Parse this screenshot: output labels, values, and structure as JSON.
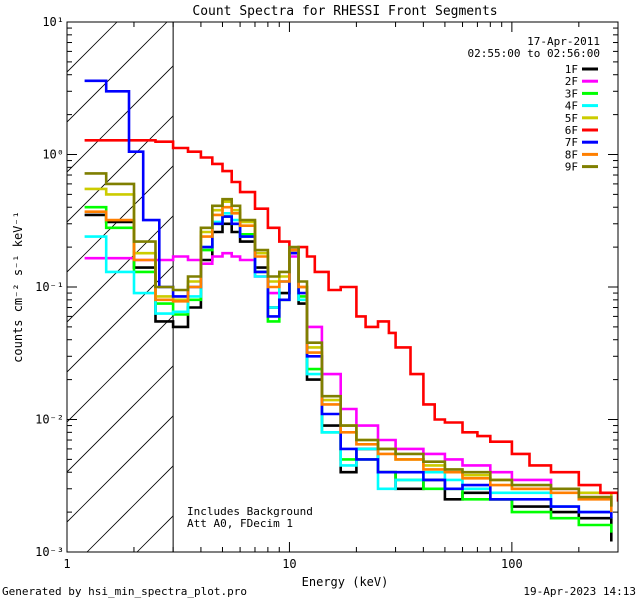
{
  "chart_data": {
    "type": "line",
    "title": "Count Spectra for RHESSI Front Segments",
    "xlabel": "Energy (keV)",
    "ylabel": "counts cm⁻² s⁻¹ keV⁻¹",
    "xscale": "log",
    "yscale": "log",
    "xlim": [
      1,
      300
    ],
    "ylim": [
      0.001,
      10
    ],
    "x_tick_labels": [
      "1",
      "10",
      "100"
    ],
    "y_tick_labels": [
      "10⁻³",
      "10⁻²",
      "10⁻¹",
      "10⁰",
      "10¹"
    ],
    "legend_position": "top-right",
    "date": "17-Apr-2011",
    "time_range": "02:55:00 to 02:56:00",
    "annotations": [
      "Includes Background",
      "Att A0, FDecim 1"
    ],
    "hatched_region_keV": [
      1,
      3
    ],
    "series": [
      {
        "name": "1F",
        "color": "#000000",
        "points": [
          [
            1.2,
            0.35
          ],
          [
            1.5,
            0.31
          ],
          [
            2.0,
            0.14
          ],
          [
            2.5,
            0.055
          ],
          [
            3.0,
            0.05
          ],
          [
            3.5,
            0.07
          ],
          [
            4.0,
            0.16
          ],
          [
            4.5,
            0.26
          ],
          [
            5.0,
            0.3
          ],
          [
            5.5,
            0.26
          ],
          [
            6.0,
            0.22
          ],
          [
            7.0,
            0.14
          ],
          [
            8.0,
            0.07
          ],
          [
            9.0,
            0.09
          ],
          [
            10.0,
            0.19
          ],
          [
            11.0,
            0.075
          ],
          [
            12.0,
            0.02
          ],
          [
            14.0,
            0.009
          ],
          [
            17.0,
            0.004
          ],
          [
            20.0,
            0.006
          ],
          [
            25.0,
            0.004
          ],
          [
            30.0,
            0.003
          ],
          [
            40.0,
            0.0035
          ],
          [
            50.0,
            0.0025
          ],
          [
            60.0,
            0.0028
          ],
          [
            80.0,
            0.0025
          ],
          [
            100.0,
            0.0022
          ],
          [
            150.0,
            0.002
          ],
          [
            200.0,
            0.0018
          ],
          [
            280.0,
            0.0012
          ]
        ]
      },
      {
        "name": "2F",
        "color": "#ff00ff",
        "points": [
          [
            1.2,
            0.165
          ],
          [
            1.5,
            0.165
          ],
          [
            2.0,
            0.16
          ],
          [
            2.5,
            0.16
          ],
          [
            3.0,
            0.17
          ],
          [
            3.5,
            0.16
          ],
          [
            4.0,
            0.15
          ],
          [
            4.5,
            0.17
          ],
          [
            5.0,
            0.18
          ],
          [
            5.5,
            0.17
          ],
          [
            6.0,
            0.16
          ],
          [
            7.0,
            0.12
          ],
          [
            8.0,
            0.09
          ],
          [
            9.0,
            0.11
          ],
          [
            10.0,
            0.17
          ],
          [
            11.0,
            0.1
          ],
          [
            12.0,
            0.05
          ],
          [
            14.0,
            0.022
          ],
          [
            17.0,
            0.012
          ],
          [
            20.0,
            0.009
          ],
          [
            25.0,
            0.007
          ],
          [
            30.0,
            0.006
          ],
          [
            40.0,
            0.0055
          ],
          [
            50.0,
            0.005
          ],
          [
            60.0,
            0.0045
          ],
          [
            80.0,
            0.004
          ],
          [
            100.0,
            0.0035
          ],
          [
            150.0,
            0.003
          ],
          [
            200.0,
            0.0028
          ],
          [
            280.0,
            0.0022
          ]
        ]
      },
      {
        "name": "3F",
        "color": "#00ff00",
        "points": [
          [
            1.2,
            0.4
          ],
          [
            1.5,
            0.28
          ],
          [
            2.0,
            0.13
          ],
          [
            2.5,
            0.075
          ],
          [
            3.0,
            0.062
          ],
          [
            3.5,
            0.08
          ],
          [
            4.0,
            0.19
          ],
          [
            4.5,
            0.3
          ],
          [
            5.0,
            0.34
          ],
          [
            5.5,
            0.3
          ],
          [
            6.0,
            0.25
          ],
          [
            7.0,
            0.13
          ],
          [
            8.0,
            0.055
          ],
          [
            9.0,
            0.08
          ],
          [
            10.0,
            0.18
          ],
          [
            11.0,
            0.085
          ],
          [
            12.0,
            0.024
          ],
          [
            14.0,
            0.008
          ],
          [
            17.0,
            0.005
          ],
          [
            20.0,
            0.005
          ],
          [
            25.0,
            0.004
          ],
          [
            30.0,
            0.0035
          ],
          [
            40.0,
            0.003
          ],
          [
            50.0,
            0.003
          ],
          [
            60.0,
            0.0025
          ],
          [
            80.0,
            0.0025
          ],
          [
            100.0,
            0.002
          ],
          [
            150.0,
            0.0018
          ],
          [
            200.0,
            0.0016
          ],
          [
            280.0,
            0.0014
          ]
        ]
      },
      {
        "name": "4F",
        "color": "#00ffff",
        "points": [
          [
            1.2,
            0.24
          ],
          [
            1.5,
            0.13
          ],
          [
            2.0,
            0.09
          ],
          [
            2.5,
            0.063
          ],
          [
            3.0,
            0.065
          ],
          [
            3.5,
            0.085
          ],
          [
            4.0,
            0.2
          ],
          [
            4.5,
            0.31
          ],
          [
            5.0,
            0.36
          ],
          [
            5.5,
            0.32
          ],
          [
            6.0,
            0.24
          ],
          [
            7.0,
            0.12
          ],
          [
            8.0,
            0.07
          ],
          [
            9.0,
            0.11
          ],
          [
            10.0,
            0.19
          ],
          [
            11.0,
            0.08
          ],
          [
            12.0,
            0.022
          ],
          [
            14.0,
            0.008
          ],
          [
            17.0,
            0.0045
          ],
          [
            20.0,
            0.006
          ],
          [
            25.0,
            0.003
          ],
          [
            30.0,
            0.0035
          ],
          [
            40.0,
            0.004
          ],
          [
            50.0,
            0.0035
          ],
          [
            60.0,
            0.003
          ],
          [
            80.0,
            0.0028
          ],
          [
            100.0,
            0.0028
          ],
          [
            150.0,
            0.0022
          ],
          [
            200.0,
            0.002
          ],
          [
            280.0,
            0.0018
          ]
        ]
      },
      {
        "name": "5F",
        "color": "#cccc00",
        "points": [
          [
            1.2,
            0.55
          ],
          [
            1.5,
            0.5
          ],
          [
            2.0,
            0.18
          ],
          [
            2.5,
            0.085
          ],
          [
            3.0,
            0.08
          ],
          [
            3.5,
            0.11
          ],
          [
            4.0,
            0.26
          ],
          [
            4.5,
            0.38
          ],
          [
            5.0,
            0.44
          ],
          [
            5.5,
            0.38
          ],
          [
            6.0,
            0.31
          ],
          [
            7.0,
            0.18
          ],
          [
            8.0,
            0.11
          ],
          [
            9.0,
            0.12
          ],
          [
            10.0,
            0.18
          ],
          [
            11.0,
            0.1
          ],
          [
            12.0,
            0.035
          ],
          [
            14.0,
            0.014
          ],
          [
            17.0,
            0.009
          ],
          [
            20.0,
            0.007
          ],
          [
            25.0,
            0.006
          ],
          [
            30.0,
            0.005
          ],
          [
            40.0,
            0.0045
          ],
          [
            50.0,
            0.004
          ],
          [
            60.0,
            0.0038
          ],
          [
            80.0,
            0.0035
          ],
          [
            100.0,
            0.003
          ],
          [
            150.0,
            0.003
          ],
          [
            200.0,
            0.0028
          ],
          [
            280.0,
            0.0022
          ]
        ]
      },
      {
        "name": "6F",
        "color": "#ff0000",
        "points": [
          [
            1.2,
            1.28
          ],
          [
            1.5,
            1.28
          ],
          [
            2.0,
            1.28
          ],
          [
            2.5,
            1.25
          ],
          [
            3.0,
            1.12
          ],
          [
            3.5,
            1.05
          ],
          [
            4.0,
            0.95
          ],
          [
            4.5,
            0.85
          ],
          [
            5.0,
            0.75
          ],
          [
            5.5,
            0.62
          ],
          [
            6.0,
            0.52
          ],
          [
            7.0,
            0.39
          ],
          [
            8.0,
            0.28
          ],
          [
            9.0,
            0.22
          ],
          [
            10.0,
            0.19
          ],
          [
            11.0,
            0.2
          ],
          [
            12.0,
            0.17
          ],
          [
            13.0,
            0.13
          ],
          [
            15.0,
            0.095
          ],
          [
            17.0,
            0.1
          ],
          [
            20.0,
            0.06
          ],
          [
            22.0,
            0.05
          ],
          [
            25.0,
            0.055
          ],
          [
            28.0,
            0.045
          ],
          [
            30.0,
            0.035
          ],
          [
            35.0,
            0.022
          ],
          [
            40.0,
            0.013
          ],
          [
            45.0,
            0.01
          ],
          [
            50.0,
            0.0095
          ],
          [
            60.0,
            0.008
          ],
          [
            70.0,
            0.0075
          ],
          [
            80.0,
            0.0068
          ],
          [
            100.0,
            0.0055
          ],
          [
            120.0,
            0.0045
          ],
          [
            150.0,
            0.004
          ],
          [
            200.0,
            0.0032
          ],
          [
            250.0,
            0.0028
          ],
          [
            300.0,
            0.0024
          ]
        ]
      },
      {
        "name": "7F",
        "color": "#0000ff",
        "points": [
          [
            1.2,
            3.6
          ],
          [
            1.5,
            3.0
          ],
          [
            1.9,
            1.05
          ],
          [
            2.2,
            0.32
          ],
          [
            2.6,
            0.1
          ],
          [
            3.0,
            0.085
          ],
          [
            3.5,
            0.1
          ],
          [
            4.0,
            0.2
          ],
          [
            4.5,
            0.3
          ],
          [
            5.0,
            0.34
          ],
          [
            5.5,
            0.3
          ],
          [
            6.0,
            0.24
          ],
          [
            7.0,
            0.13
          ],
          [
            8.0,
            0.06
          ],
          [
            9.0,
            0.08
          ],
          [
            10.0,
            0.18
          ],
          [
            11.0,
            0.09
          ],
          [
            12.0,
            0.03
          ],
          [
            14.0,
            0.011
          ],
          [
            17.0,
            0.006
          ],
          [
            20.0,
            0.005
          ],
          [
            25.0,
            0.004
          ],
          [
            30.0,
            0.004
          ],
          [
            40.0,
            0.0035
          ],
          [
            50.0,
            0.003
          ],
          [
            60.0,
            0.0032
          ],
          [
            80.0,
            0.0025
          ],
          [
            100.0,
            0.0025
          ],
          [
            150.0,
            0.0022
          ],
          [
            200.0,
            0.002
          ],
          [
            280.0,
            0.0018
          ]
        ]
      },
      {
        "name": "8F",
        "color": "#ff7f00",
        "points": [
          [
            1.2,
            0.37
          ],
          [
            1.5,
            0.32
          ],
          [
            2.0,
            0.16
          ],
          [
            2.5,
            0.08
          ],
          [
            3.0,
            0.078
          ],
          [
            3.5,
            0.1
          ],
          [
            4.0,
            0.24
          ],
          [
            4.5,
            0.35
          ],
          [
            5.0,
            0.4
          ],
          [
            5.5,
            0.36
          ],
          [
            6.0,
            0.29
          ],
          [
            7.0,
            0.17
          ],
          [
            8.0,
            0.1
          ],
          [
            9.0,
            0.11
          ],
          [
            10.0,
            0.19
          ],
          [
            11.0,
            0.1
          ],
          [
            12.0,
            0.032
          ],
          [
            14.0,
            0.013
          ],
          [
            17.0,
            0.008
          ],
          [
            20.0,
            0.0065
          ],
          [
            25.0,
            0.0055
          ],
          [
            30.0,
            0.005
          ],
          [
            40.0,
            0.0042
          ],
          [
            50.0,
            0.004
          ],
          [
            60.0,
            0.0036
          ],
          [
            80.0,
            0.0032
          ],
          [
            100.0,
            0.003
          ],
          [
            150.0,
            0.0028
          ],
          [
            200.0,
            0.0025
          ],
          [
            280.0,
            0.002
          ]
        ]
      },
      {
        "name": "9F",
        "color": "#7f7f00",
        "points": [
          [
            1.2,
            0.72
          ],
          [
            1.5,
            0.6
          ],
          [
            2.0,
            0.22
          ],
          [
            2.5,
            0.1
          ],
          [
            3.0,
            0.095
          ],
          [
            3.5,
            0.12
          ],
          [
            4.0,
            0.28
          ],
          [
            4.5,
            0.41
          ],
          [
            5.0,
            0.46
          ],
          [
            5.5,
            0.41
          ],
          [
            6.0,
            0.32
          ],
          [
            7.0,
            0.19
          ],
          [
            8.0,
            0.12
          ],
          [
            9.0,
            0.13
          ],
          [
            10.0,
            0.2
          ],
          [
            11.0,
            0.11
          ],
          [
            12.0,
            0.038
          ],
          [
            14.0,
            0.015
          ],
          [
            17.0,
            0.009
          ],
          [
            20.0,
            0.007
          ],
          [
            25.0,
            0.006
          ],
          [
            30.0,
            0.0055
          ],
          [
            40.0,
            0.0048
          ],
          [
            50.0,
            0.0042
          ],
          [
            60.0,
            0.004
          ],
          [
            80.0,
            0.0035
          ],
          [
            100.0,
            0.0032
          ],
          [
            150.0,
            0.003
          ],
          [
            200.0,
            0.0026
          ],
          [
            280.0,
            0.0022
          ]
        ]
      }
    ]
  },
  "footer": {
    "generated_by": "Generated by hsi_min_spectra_plot.pro",
    "timestamp": "19-Apr-2023 14:13"
  }
}
